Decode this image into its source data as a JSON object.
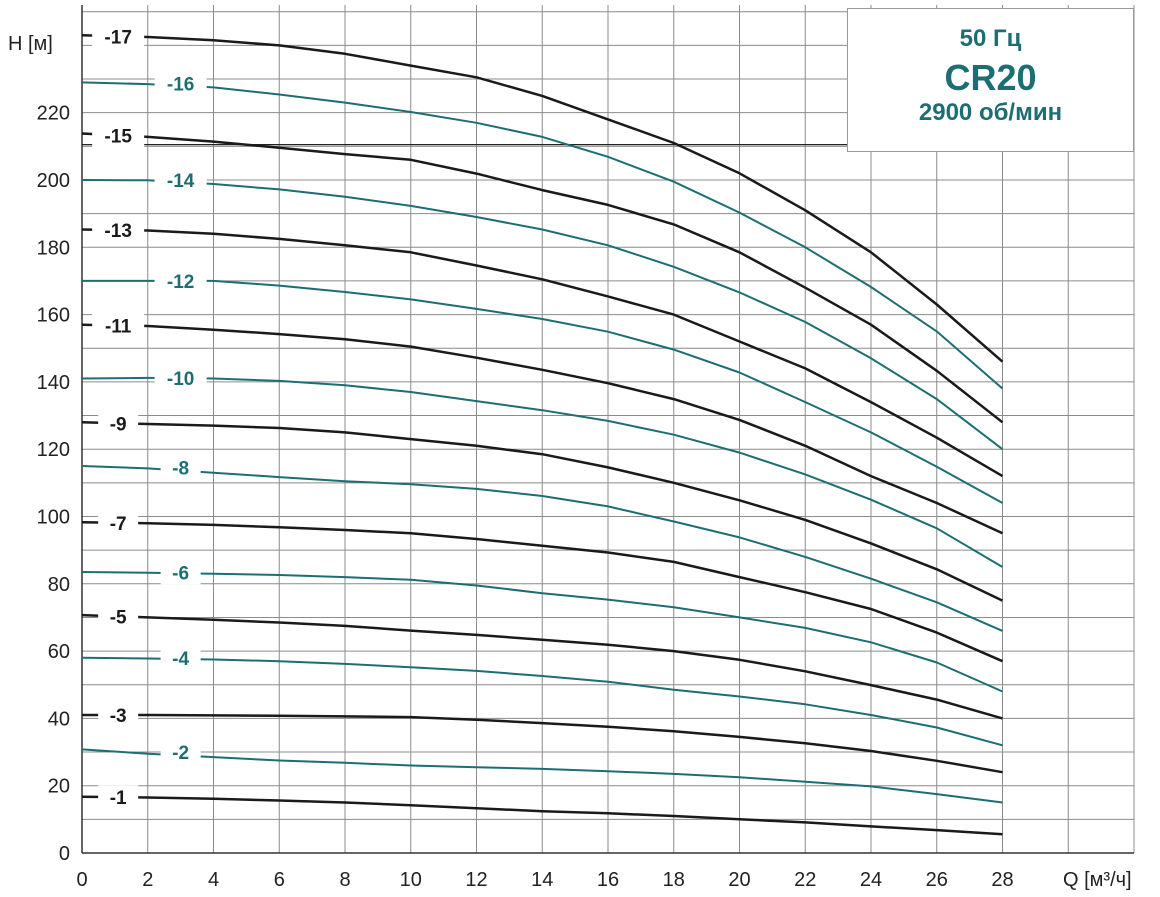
{
  "info_box": {
    "frequency": "50 Гц",
    "model": "CR20",
    "speed": "2900 об/мин"
  },
  "colors": {
    "black_series": "#1a1a1a",
    "teal_series": "#1d6e73",
    "grid": "#8c8c8c"
  },
  "chart_data": {
    "type": "line",
    "title": "",
    "xlabel": "Q [м³/ч]",
    "ylabel": "H [м]",
    "xlim": [
      0,
      32
    ],
    "ylim": [
      0,
      252
    ],
    "x_ticks": [
      0,
      2,
      4,
      6,
      8,
      10,
      12,
      14,
      16,
      18,
      20,
      22,
      24,
      26,
      28
    ],
    "y_ticks": [
      0,
      20,
      40,
      60,
      80,
      100,
      120,
      140,
      160,
      180,
      200,
      220
    ],
    "grid": true,
    "x": [
      0,
      2,
      4,
      6,
      8,
      10,
      12,
      14,
      16,
      18,
      20,
      22,
      24,
      26,
      28
    ],
    "series": [
      {
        "name": "-1",
        "color": "black",
        "values": [
          16.7,
          16.5,
          16.1,
          15.6,
          15,
          14.2,
          13.3,
          12.4,
          11.8,
          11,
          10,
          9.1,
          7.9,
          6.8,
          5.6
        ]
      },
      {
        "name": "-2",
        "color": "teal",
        "values": [
          30.8,
          29.5,
          28.5,
          27.5,
          26.8,
          26,
          25.5,
          25,
          24.3,
          23.5,
          22.5,
          21.2,
          19.8,
          17.5,
          15
        ]
      },
      {
        "name": "-3",
        "color": "black",
        "values": [
          41,
          41,
          40.9,
          40.8,
          40.6,
          40.4,
          39.6,
          38.6,
          37.5,
          36.2,
          34.5,
          32.6,
          30.3,
          27.4,
          24
        ]
      },
      {
        "name": "-4",
        "color": "teal",
        "values": [
          58,
          57.8,
          57.5,
          57,
          56.2,
          55.2,
          54.1,
          52.6,
          50.9,
          48.5,
          46.5,
          44.2,
          41,
          37.3,
          32
        ]
      },
      {
        "name": "-5",
        "color": "black",
        "values": [
          70.7,
          70,
          69.3,
          68.5,
          67.5,
          66.1,
          64.8,
          63.4,
          61.9,
          60,
          57.4,
          54,
          49.9,
          45.6,
          40
        ]
      },
      {
        "name": "-6",
        "color": "teal",
        "values": [
          83.5,
          83.3,
          83,
          82.6,
          82,
          81.2,
          79.5,
          77.2,
          75.3,
          73,
          70,
          66.9,
          62.6,
          56.6,
          48
        ]
      },
      {
        "name": "-7",
        "color": "black",
        "values": [
          98.3,
          98,
          97.5,
          96.8,
          96,
          95,
          93.3,
          91.3,
          89.3,
          86.5,
          82,
          77.5,
          72.5,
          65.5,
          57
        ]
      },
      {
        "name": "-8",
        "color": "teal",
        "values": [
          115,
          114.3,
          113,
          111.7,
          110.5,
          109.6,
          108.2,
          106.1,
          103,
          98.5,
          93.8,
          88,
          81.5,
          74.5,
          66
        ]
      },
      {
        "name": "-9",
        "color": "black",
        "values": [
          128,
          127.5,
          127,
          126.3,
          125,
          123,
          121,
          118.5,
          114.6,
          110,
          104.8,
          99,
          92,
          84.3,
          75
        ]
      },
      {
        "name": "-10",
        "color": "teal",
        "values": [
          141,
          141.2,
          141,
          140.3,
          139,
          137,
          134.3,
          131.6,
          128.4,
          124.3,
          119,
          112.5,
          105,
          96.5,
          85
        ]
      },
      {
        "name": "-11",
        "color": "black",
        "values": [
          157,
          156.6,
          155.5,
          154.2,
          152.7,
          150.5,
          147.2,
          143.6,
          139.6,
          134.9,
          128.7,
          121,
          112,
          104,
          95
        ]
      },
      {
        "name": "-12",
        "color": "teal",
        "values": [
          170,
          170,
          170,
          168.6,
          166.7,
          164.5,
          161.7,
          158.7,
          154.9,
          149.6,
          142.8,
          134,
          125,
          114.8,
          104
        ]
      },
      {
        "name": "-13",
        "color": "black",
        "values": [
          185.3,
          185,
          184,
          182.5,
          180.6,
          178.5,
          174.6,
          170.5,
          165.4,
          160,
          152,
          144,
          134,
          123.4,
          112
        ]
      },
      {
        "name": "-14",
        "color": "teal",
        "values": [
          200,
          199.9,
          198.8,
          197.2,
          195,
          192.3,
          189,
          185.3,
          180.6,
          174.2,
          166.6,
          157.8,
          147,
          134.9,
          120
        ]
      },
      {
        "name": "-15",
        "color": "black",
        "values": [
          213.8,
          212.8,
          211.4,
          209.6,
          207.7,
          206,
          201.9,
          197,
          192.6,
          186.8,
          178.5,
          168,
          157,
          143.3,
          128
        ]
      },
      {
        "name": "-16",
        "color": "teal",
        "values": [
          229,
          228.5,
          227.5,
          225.4,
          223,
          220.2,
          217,
          212.8,
          206.9,
          199.5,
          190.3,
          180,
          168.2,
          155,
          138
        ]
      },
      {
        "name": "-17",
        "color": "black",
        "values": [
          243,
          242.5,
          241.5,
          240,
          237.5,
          234,
          230.5,
          225,
          218,
          211,
          202,
          191,
          178.5,
          163,
          146
        ]
      }
    ]
  }
}
